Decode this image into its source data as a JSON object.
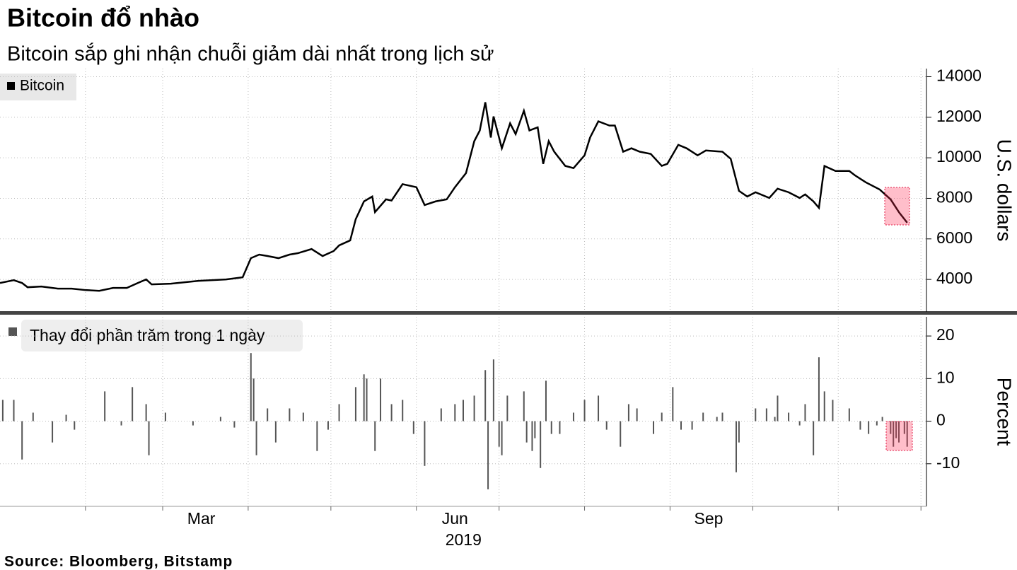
{
  "title": "Bitcoin đổ nhào",
  "subtitle": "Bitcoin sắp ghi nhận chuỗi giảm dài nhất trong lịch sử",
  "source": "Source: Bloomberg, Bitstamp",
  "chart_data": [
    {
      "type": "line",
      "series": [
        {
          "name": "Bitcoin",
          "color": "#000000",
          "x": [
            0,
            5,
            8,
            10,
            15,
            21,
            26,
            31,
            36,
            41,
            46,
            50,
            53,
            55,
            62,
            67,
            72,
            77,
            82,
            88,
            91,
            94,
            97,
            101,
            105,
            108,
            113,
            117,
            121,
            123,
            127,
            129,
            132,
            135,
            136,
            140,
            142,
            146,
            151,
            154,
            158,
            162,
            165,
            169,
            172,
            174,
            176,
            178,
            179,
            182,
            185,
            187,
            190,
            192,
            195,
            197,
            199,
            201,
            205,
            208,
            212,
            214,
            217,
            221,
            223,
            226,
            229,
            232,
            236,
            240,
            242,
            246,
            249,
            253,
            256,
            262,
            265,
            268,
            271,
            274,
            279,
            282,
            286,
            290,
            292,
            295,
            297,
            299,
            303,
            308,
            310,
            314,
            319,
            323,
            326,
            329
          ],
          "values": [
            3825,
            3965,
            3825,
            3615,
            3650,
            3545,
            3545,
            3475,
            3440,
            3580,
            3580,
            3825,
            4000,
            3755,
            3790,
            3860,
            3930,
            3965,
            4000,
            4105,
            5050,
            5225,
            5155,
            5050,
            5225,
            5295,
            5500,
            5155,
            5400,
            5680,
            5925,
            6970,
            7850,
            8090,
            7320,
            7950,
            7890,
            8700,
            8550,
            7670,
            7850,
            7950,
            8550,
            9245,
            10820,
            11345,
            12740,
            11000,
            12040,
            10470,
            11700,
            11170,
            12320,
            11350,
            11500,
            9700,
            10820,
            10300,
            9600,
            9490,
            10120,
            11000,
            11800,
            11590,
            11590,
            10300,
            10470,
            10300,
            10190,
            9600,
            9700,
            10640,
            10470,
            10120,
            10360,
            10300,
            9950,
            8370,
            8090,
            8300,
            8020,
            8475,
            8300,
            8020,
            8195,
            7850,
            7530,
            9595,
            9350,
            9350,
            9140,
            8790,
            8440,
            7950,
            7320,
            6800
          ]
        }
      ],
      "ylim": [
        2400,
        14400
      ],
      "yticks": [
        4000,
        6000,
        8000,
        10000,
        12000,
        14000
      ],
      "ylabel": "U.S. dollars",
      "xlim": [
        0,
        336
      ],
      "grid": true
    },
    {
      "type": "bar",
      "series": [
        {
          "name": "Thay đổi phần trăm trong 1 ngày",
          "color": "#555555",
          "x": [
            1,
            5,
            8,
            12,
            19,
            24,
            27,
            38,
            44,
            48,
            53,
            54,
            60,
            70,
            80,
            85,
            91,
            92,
            93,
            97,
            100,
            105,
            110,
            115,
            119,
            123,
            129,
            132,
            133,
            136,
            138,
            142,
            146,
            150,
            154,
            160,
            165,
            168,
            172,
            176,
            177,
            179,
            181,
            182,
            184,
            190,
            191,
            193,
            194,
            196,
            198,
            200,
            203,
            208,
            212,
            217,
            220,
            225,
            228,
            231,
            237,
            240,
            244,
            247,
            251,
            255,
            260,
            262,
            267,
            268,
            274,
            278,
            281,
            282,
            286,
            290,
            292,
            295,
            297,
            299,
            302,
            308,
            312,
            315,
            318,
            320,
            323,
            324,
            325,
            326,
            328,
            329
          ],
          "values": [
            5,
            5,
            -9,
            2,
            -5,
            1.5,
            -2,
            7,
            -1,
            8,
            4,
            -8,
            2,
            -1,
            1,
            -1.5,
            16,
            10,
            -8,
            3,
            -5,
            3,
            2,
            -7,
            -2,
            4,
            8,
            11,
            10,
            -7,
            10,
            4,
            5,
            -3,
            -10.5,
            3,
            4,
            5,
            6,
            12,
            -16,
            14.5,
            -6,
            -8,
            6,
            7,
            -5,
            -7,
            -4,
            -11,
            9.5,
            -3,
            -3,
            2,
            5,
            6,
            -2,
            -6,
            4,
            3,
            -3,
            2,
            8,
            -2,
            -2,
            2,
            1,
            2,
            -12,
            -5,
            3,
            3,
            1,
            6,
            2,
            -1,
            4,
            -8,
            15,
            7,
            5,
            3,
            -2,
            -3,
            -1,
            1,
            -3,
            -6,
            -4,
            -5,
            -3,
            -6
          ]
        }
      ],
      "ylim": [
        -20,
        24.5
      ],
      "yticks": [
        -10,
        0,
        10,
        20
      ],
      "ylabel": "Percent",
      "xlim": [
        0,
        336
      ],
      "xticks": [
        {
          "value": 73,
          "label": "Mar"
        },
        {
          "value": 165,
          "label": "Jun"
        },
        {
          "value": 257,
          "label": "Sep"
        }
      ],
      "xtick_marks": [
        31,
        59,
        90,
        120,
        151,
        181,
        212,
        243,
        273,
        304,
        334
      ],
      "xlabel": "2019",
      "grid": true
    }
  ]
}
